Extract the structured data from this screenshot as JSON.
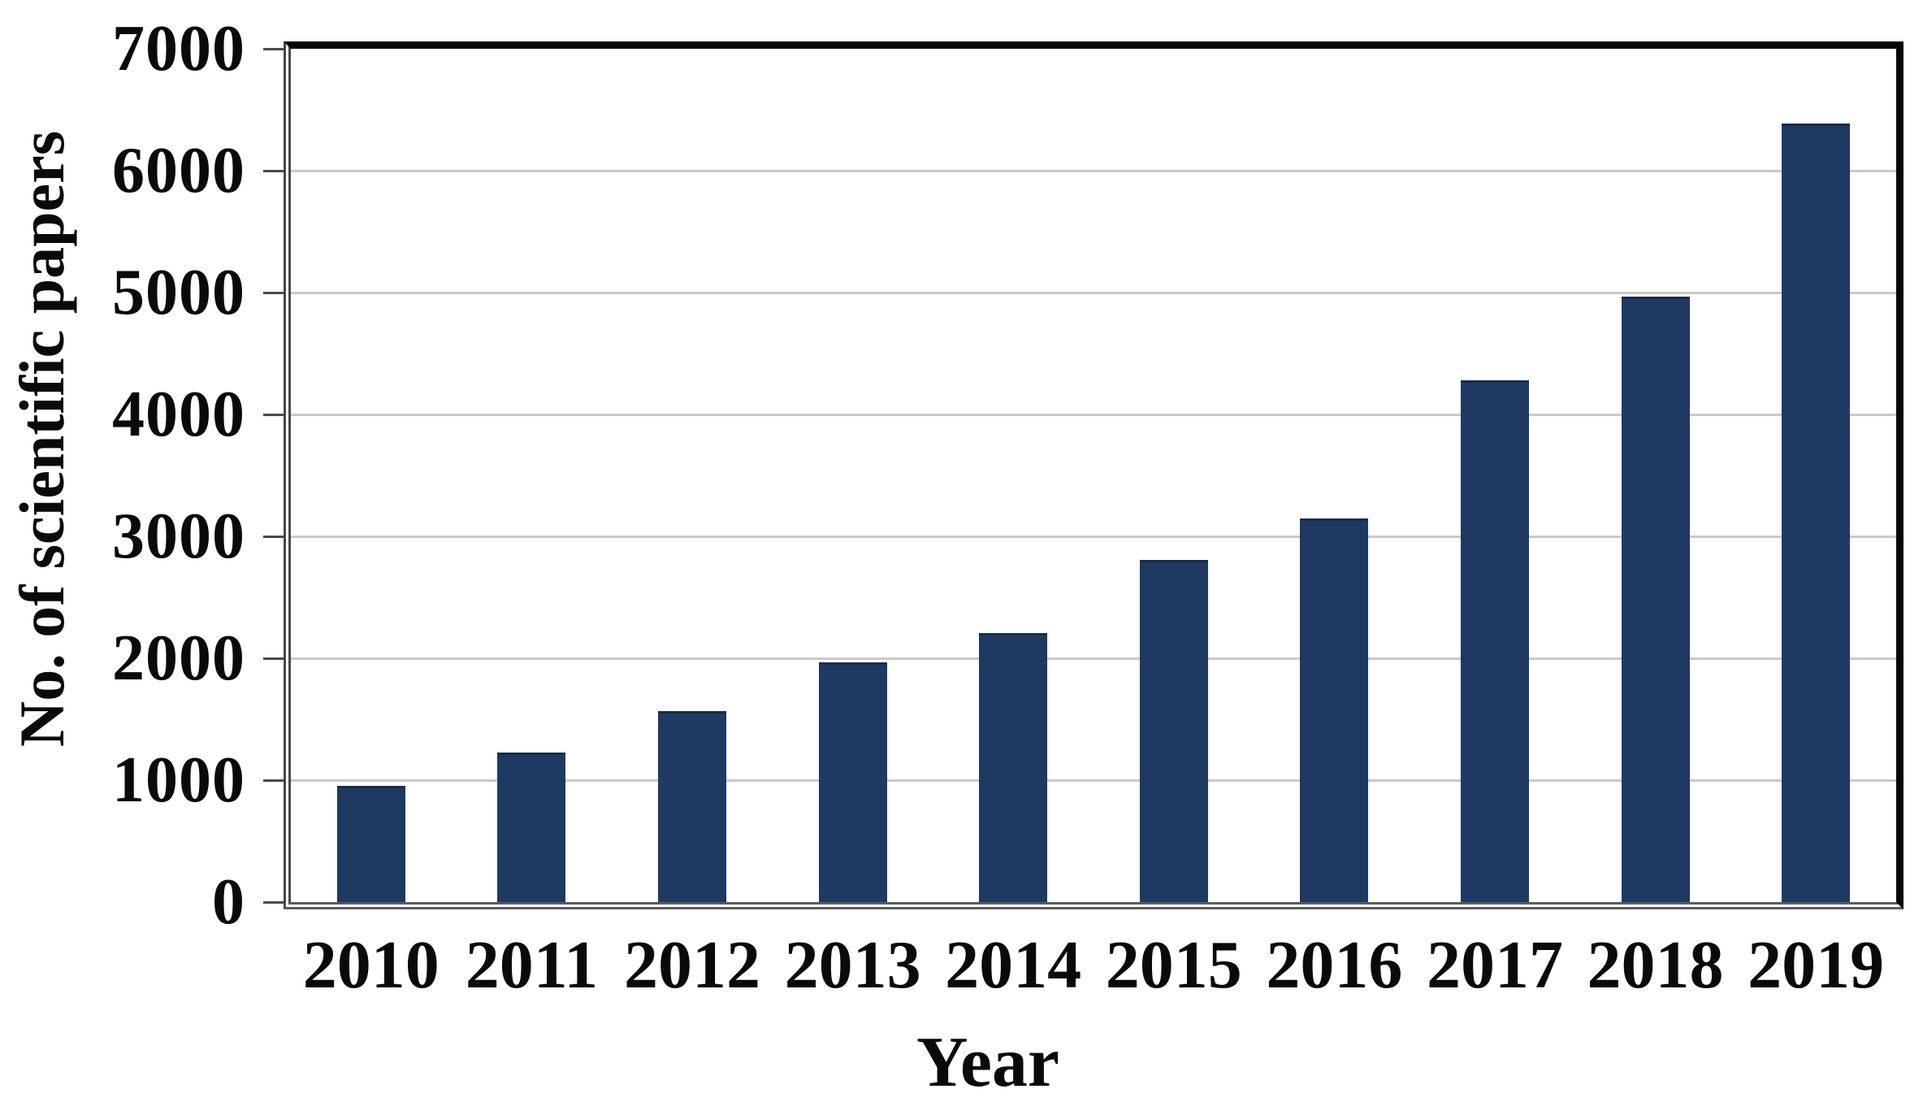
{
  "figure": {
    "background": "#ffffff"
  },
  "chart_data": {
    "type": "bar",
    "title": "",
    "categories": [
      "2010",
      "2011",
      "2012",
      "2013",
      "2014",
      "2015",
      "2016",
      "2017",
      "2018",
      "2019"
    ],
    "values": [
      955,
      1230,
      1570,
      1965,
      2210,
      2810,
      3150,
      4280,
      4965,
      6385
    ],
    "xlabel": "Year",
    "ylabel": "No. of scientific papers",
    "ylim": [
      0,
      7000
    ],
    "ytick_interval": 1000,
    "ytick_labels": [
      "0",
      "1000",
      "2000",
      "3000",
      "4000",
      "5000",
      "6000",
      "7000"
    ],
    "grid": "horizontal-only",
    "legend": "none",
    "bar_color": "#1e3a62",
    "bar_top_edge_color": "#162c4d",
    "gridline_color": "#c9c9c9",
    "frame_color": "#060606",
    "axis_shadow_color": "#4a4a4a",
    "text_color": "#0a0a0a"
  }
}
